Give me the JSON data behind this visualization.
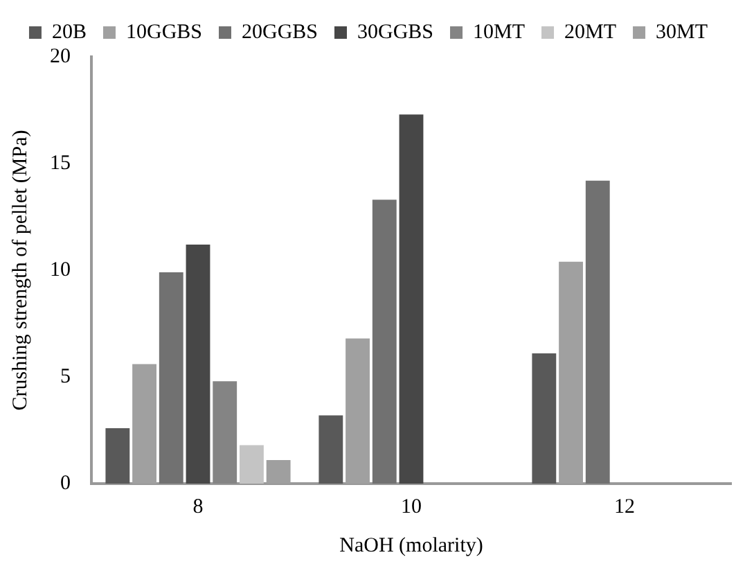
{
  "chart_data": {
    "type": "bar",
    "xlabel": "NaOH (molarity)",
    "ylabel": "Crushing strength of pellet (MPa)",
    "categories": [
      "8",
      "10",
      "12"
    ],
    "series": [
      {
        "name": "20B",
        "color": "#595959",
        "values": [
          2.6,
          3.2,
          6.1
        ]
      },
      {
        "name": "10GGBS",
        "color": "#a0a0a0",
        "values": [
          5.6,
          6.8,
          10.4
        ]
      },
      {
        "name": "20GGBS",
        "color": "#717171",
        "values": [
          9.9,
          13.3,
          14.2
        ]
      },
      {
        "name": "30GGBS",
        "color": "#474747",
        "values": [
          11.2,
          17.3,
          null
        ]
      },
      {
        "name": "10MT",
        "color": "#848484",
        "values": [
          4.8,
          null,
          null
        ]
      },
      {
        "name": "20MT",
        "color": "#c4c4c4",
        "values": [
          1.8,
          null,
          null
        ]
      },
      {
        "name": "30MT",
        "color": "#9f9f9f",
        "values": [
          1.1,
          null,
          null
        ]
      }
    ],
    "ylim": [
      0,
      20
    ],
    "yticks": [
      0,
      5,
      10,
      15,
      20
    ],
    "grid": false,
    "legend": "top"
  }
}
